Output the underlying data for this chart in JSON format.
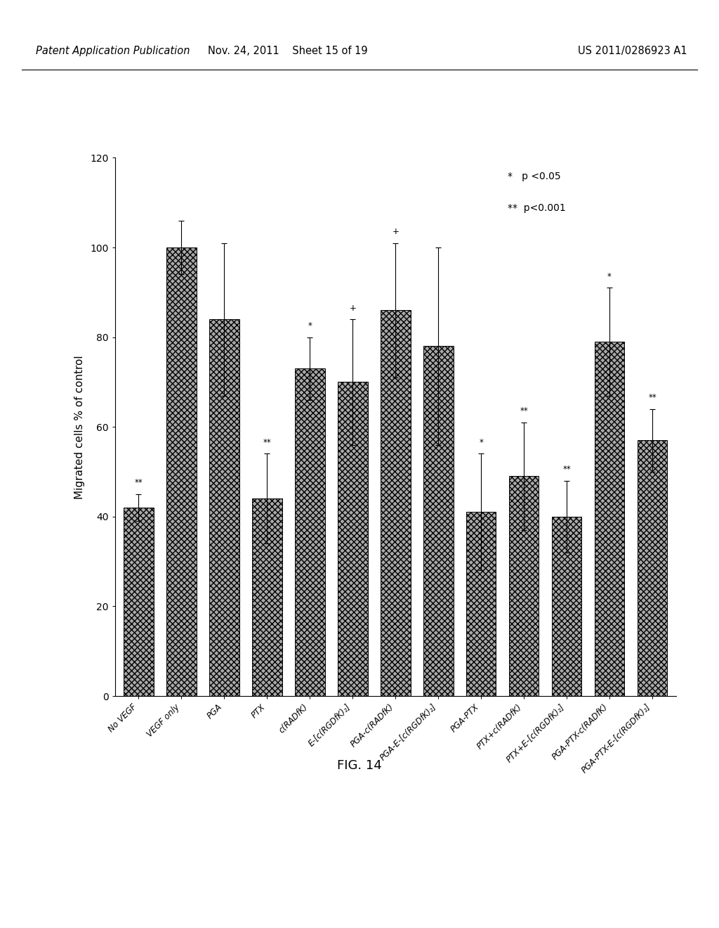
{
  "categories": [
    "No VEGF",
    "VEGF only",
    "PGA",
    "PTX",
    "c(RADfK)",
    "E-[c(RGDfK)₂]",
    "PGA-c(RADfK)",
    "PGA-E-[c(RGDfK)₂]",
    "PGA-PTX",
    "PTX+c(RADfK)",
    "PTX+E-[c(RGDfK)₂]",
    "PGA-PTX-c(RADfK)",
    "PGA-PTX-E-[c(RGDfK)₂]"
  ],
  "values": [
    42,
    100,
    84,
    44,
    73,
    70,
    86,
    78,
    41,
    49,
    40,
    79,
    57
  ],
  "errors": [
    3,
    6,
    17,
    10,
    7,
    14,
    15,
    22,
    13,
    12,
    8,
    12,
    7
  ],
  "significance": [
    "**",
    "",
    "",
    "**",
    "*",
    "+",
    "+",
    "",
    "*",
    "**",
    "**",
    "*",
    "**"
  ],
  "ylabel": "Migrated cells % of control",
  "ylim": [
    0,
    120
  ],
  "yticks": [
    0,
    20,
    40,
    60,
    80,
    100,
    120
  ],
  "legend_star": "*",
  "legend_dstar": "**",
  "legend_text1": "p <0.05",
  "legend_text2": "p<0.001",
  "fig_label": "FIG. 14",
  "header_line1": "Patent Application Publication",
  "header_line2": "Nov. 24, 2011    Sheet 15 of 19",
  "header_line3": "US 2011/0286923 A1",
  "bar_facecolor": "#a8a8a8",
  "hatch_pattern": "xxxx",
  "bar_edge_color": "#000000"
}
